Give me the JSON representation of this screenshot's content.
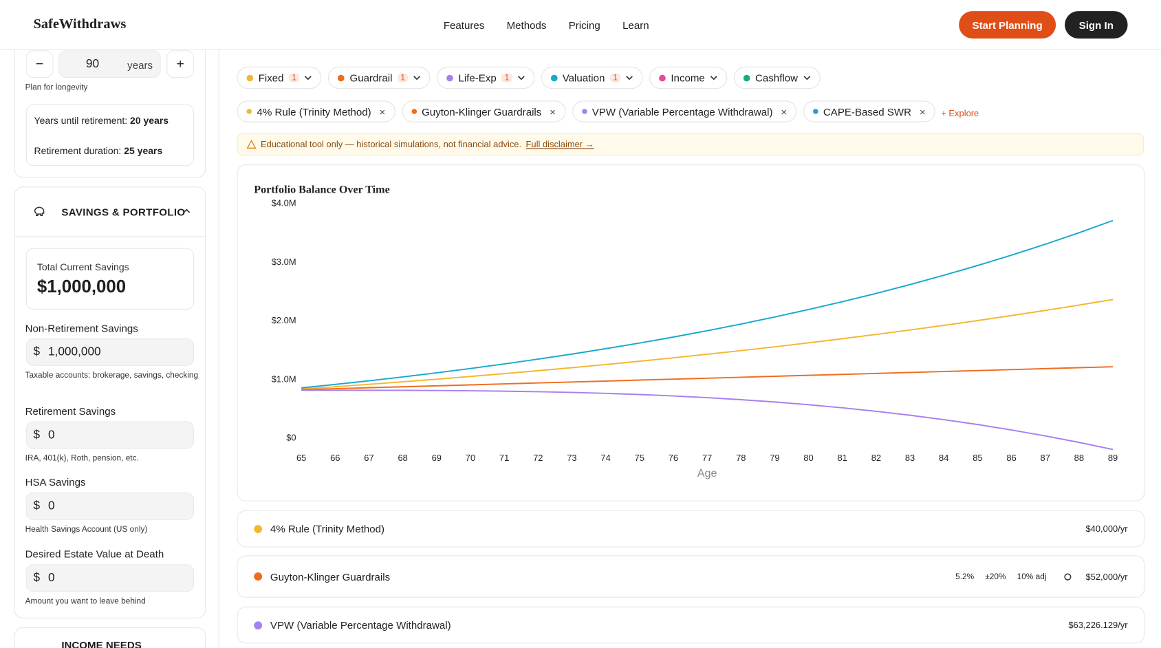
{
  "header": {
    "brand": "SafeWithdraws",
    "nav": [
      "Features",
      "Methods",
      "Pricing",
      "Learn"
    ],
    "start_button": "Start Planning",
    "signin_button": "Sign In"
  },
  "sidebar": {
    "age_value": "90",
    "age_unit": "years",
    "age_hint": "Plan for longevity",
    "years_until_label": "Years until retirement:",
    "years_until_value": "20 years",
    "duration_label": "Retirement duration:",
    "duration_value": "25 years",
    "section_title": "SAVINGS & PORTFOLIO",
    "total_label": "Total Current Savings",
    "total_value": "$1,000,000",
    "fields": [
      {
        "label": "Non-Retirement Savings",
        "prefix": "$",
        "value": "1,000,000",
        "hint": "Taxable accounts: brokerage, savings, checking"
      },
      {
        "label": "Retirement Savings",
        "prefix": "$",
        "value": "0",
        "hint": "IRA, 401(k), Roth, pension, etc."
      },
      {
        "label": "HSA Savings",
        "prefix": "$",
        "value": "0",
        "hint": "Health Savings Account (US only)"
      },
      {
        "label": "Desired Estate Value at Death",
        "prefix": "$",
        "value": "0",
        "hint": "Amount you want to leave behind"
      }
    ],
    "next_section": "INCOME NEEDS"
  },
  "filters": [
    {
      "label": "Fixed",
      "count": 1,
      "color": "#f5b731"
    },
    {
      "label": "Guardrail",
      "count": 1,
      "color": "#ef6c1f"
    },
    {
      "label": "Life-Exp",
      "count": 1,
      "color": "#a680f0"
    },
    {
      "label": "Valuation",
      "count": 1,
      "color": "#16a9cc"
    },
    {
      "label": "Income",
      "color": "#e5489a"
    },
    {
      "label": "Cashflow",
      "color": "#16ad7f"
    }
  ],
  "selected": [
    {
      "label": "4% Rule (Trinity Method)",
      "color": "#f5b731"
    },
    {
      "label": "Guyton-Klinger Guardrails",
      "color": "#ef6c1f"
    },
    {
      "label": "VPW (Variable Percentage Withdrawal)",
      "color": "#a680f0"
    },
    {
      "label": "CAPE-Based SWR",
      "color": "#16a9cc"
    }
  ],
  "explore": "+ Explore",
  "notice": {
    "text": "Educational tool only — historical simulations, not financial advice.",
    "link": "Full disclaimer →"
  },
  "chart_data": {
    "type": "line",
    "title": "Portfolio Balance Over Time",
    "x_label": "Age",
    "x": [
      65,
      66,
      67,
      68,
      69,
      70,
      71,
      72,
      73,
      74,
      75,
      76,
      77,
      78,
      79,
      80,
      81,
      82,
      83,
      84,
      85,
      86,
      87,
      88,
      89
    ],
    "xlim": [
      65,
      89
    ],
    "xticks": [
      65,
      66,
      67,
      68,
      69,
      70,
      71,
      72,
      73,
      74,
      75,
      76,
      77,
      78,
      79,
      80,
      81,
      82,
      83,
      84,
      85,
      86,
      87,
      88,
      89
    ],
    "ylim": [
      0,
      4000000
    ],
    "yticks": [
      {
        "value": 0,
        "label": "$0"
      },
      {
        "value": 1000000,
        "label": "$1.0M"
      },
      {
        "value": 2000000,
        "label": "$2.0M"
      },
      {
        "value": 3000000,
        "label": "$3.0M"
      },
      {
        "value": 4000000,
        "label": "$4.0M"
      }
    ],
    "series": [
      {
        "color": "#f5b731",
        "values": [
          1030000,
          1070000,
          1111000,
          1154000,
          1198000,
          1245000,
          1293000,
          1343000,
          1394000,
          1448000,
          1504000,
          1562000,
          1623000,
          1685000,
          1750000,
          1818000,
          1888000,
          1961000,
          2037000,
          2115000,
          2197000,
          2282000,
          2370000,
          2461000,
          2556000
        ]
      },
      {
        "color": "#ef6c1f",
        "values": [
          1020000,
          1036000,
          1053000,
          1069000,
          1085000,
          1101000,
          1118000,
          1134000,
          1150000,
          1166000,
          1183000,
          1199000,
          1215000,
          1231000,
          1248000,
          1264000,
          1280000,
          1296000,
          1313000,
          1329000,
          1345000,
          1361000,
          1378000,
          1394000,
          1410000
        ]
      },
      {
        "color": "#a680f0",
        "values": [
          1010000,
          1010000,
          1009000,
          1008000,
          1005000,
          1001000,
          994000,
          985000,
          973000,
          957000,
          937000,
          913000,
          884000,
          849000,
          810000,
          763000,
          711000,
          651000,
          584000,
          509000,
          426000,
          333000,
          232000,
          121000,
          0
        ]
      },
      {
        "color": "#16a9cc",
        "values": [
          1050000,
          1109000,
          1171000,
          1237000,
          1307000,
          1380000,
          1458000,
          1540000,
          1626000,
          1718000,
          1814000,
          1916000,
          2024000,
          2138000,
          2258000,
          2385000,
          2519000,
          2660000,
          2810000,
          2968000,
          3135000,
          3311000,
          3497000,
          3694000,
          3901000
        ]
      }
    ]
  },
  "strategies": [
    {
      "name": "4% Rule (Trinity Method)",
      "color": "#f5b731",
      "amount": "$40,000/yr"
    },
    {
      "name": "Guyton-Klinger Guardrails",
      "color": "#ef6c1f",
      "params": [
        "5.2%",
        "±20%",
        "10% adj"
      ],
      "amount": "$52,000/yr"
    },
    {
      "name": "VPW (Variable Percentage Withdrawal)",
      "color": "#a680f0",
      "amount": "$63,226.129/yr"
    }
  ]
}
